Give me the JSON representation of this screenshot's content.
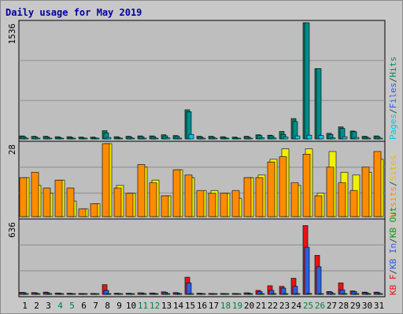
{
  "title": "Daily usage for May 2019",
  "colors": {
    "panel_bg": "#bebebe",
    "grid": "#8c8c8c",
    "pages": "#00c8e8",
    "hits": "#008c5a",
    "sites": "#ff8c00",
    "visits": "#f0f000",
    "kb_in": "#2a60e0",
    "kb_out": "#00a000",
    "kb_f": "#e81414",
    "title": "#0000a0",
    "weekend_label": "#008040"
  },
  "chart_data": [
    {
      "type": "bar",
      "title": "Daily usage for May 2019",
      "categories": [
        "1",
        "2",
        "3",
        "4",
        "5",
        "6",
        "7",
        "8",
        "9",
        "10",
        "11",
        "12",
        "13",
        "14",
        "15",
        "16",
        "17",
        "18",
        "19",
        "20",
        "21",
        "22",
        "23",
        "24",
        "25",
        "26",
        "27",
        "28",
        "29",
        "30",
        "31"
      ],
      "weekend_days": [
        "4",
        "5",
        "11",
        "12",
        "18",
        "19",
        "25",
        "26"
      ],
      "ymax_label": "1536",
      "ylim": [
        0,
        1536
      ],
      "axis_legend": [
        "Pages",
        "/",
        "Files",
        "/",
        "Hits"
      ],
      "series": [
        {
          "name": "Hits",
          "values": [
            40,
            35,
            35,
            30,
            30,
            25,
            25,
            110,
            30,
            35,
            40,
            40,
            55,
            45,
            385,
            35,
            35,
            30,
            25,
            35,
            55,
            50,
            100,
            270,
            1536,
            930,
            75,
            160,
            105,
            35,
            40
          ]
        },
        {
          "name": "Files",
          "values": [
            30,
            25,
            25,
            20,
            20,
            15,
            15,
            80,
            20,
            25,
            30,
            30,
            40,
            35,
            360,
            25,
            25,
            20,
            15,
            25,
            45,
            40,
            60,
            230,
            1536,
            930,
            60,
            140,
            95,
            25,
            30
          ]
        },
        {
          "name": "Pages",
          "values": [
            10,
            8,
            8,
            5,
            5,
            5,
            5,
            20,
            5,
            8,
            10,
            10,
            15,
            10,
            60,
            8,
            8,
            5,
            5,
            10,
            15,
            12,
            25,
            40,
            50,
            45,
            15,
            30,
            20,
            8,
            10
          ]
        }
      ]
    },
    {
      "type": "bar",
      "categories": [
        "1",
        "2",
        "3",
        "4",
        "5",
        "6",
        "7",
        "8",
        "9",
        "10",
        "11",
        "12",
        "13",
        "14",
        "15",
        "16",
        "17",
        "18",
        "19",
        "20",
        "21",
        "22",
        "23",
        "24",
        "25",
        "26",
        "27",
        "28",
        "29",
        "30",
        "31"
      ],
      "ymax_label": "28",
      "ylim": [
        0,
        28
      ],
      "axis_legend": [
        "Visits",
        "/",
        "Sites"
      ],
      "series": [
        {
          "name": "Visits",
          "values": [
            15,
            12,
            9,
            14,
            6,
            3,
            5,
            28,
            12,
            9,
            19,
            14,
            8,
            18,
            15,
            10,
            10,
            9,
            7,
            15,
            16,
            22,
            26,
            12,
            26,
            9,
            25,
            17,
            16,
            17,
            22
          ]
        },
        {
          "name": "Sites",
          "values": [
            15,
            17,
            11,
            14,
            11,
            3,
            5,
            28,
            11,
            9,
            20,
            13,
            8,
            18,
            16,
            10,
            9,
            9,
            10,
            15,
            15,
            21,
            23,
            13,
            24,
            8,
            19,
            13,
            10,
            19,
            25
          ]
        }
      ]
    },
    {
      "type": "bar",
      "categories": [
        "1",
        "2",
        "3",
        "4",
        "5",
        "6",
        "7",
        "8",
        "9",
        "10",
        "11",
        "12",
        "13",
        "14",
        "15",
        "16",
        "17",
        "18",
        "19",
        "20",
        "21",
        "22",
        "23",
        "24",
        "25",
        "26",
        "27",
        "28",
        "29",
        "30",
        "31"
      ],
      "ymax_label": "636",
      "ylim": [
        0,
        636
      ],
      "axis_legend": [
        "KB F",
        "/",
        "KB In",
        "/",
        "KB Out"
      ],
      "series": [
        {
          "name": "KB F",
          "values": [
            18,
            16,
            20,
            12,
            10,
            8,
            8,
            85,
            10,
            10,
            14,
            12,
            22,
            16,
            150,
            10,
            8,
            8,
            8,
            14,
            35,
            75,
            70,
            140,
            600,
            340,
            25,
            100,
            30,
            20,
            20
          ]
        },
        {
          "name": "KB In",
          "values": [
            15,
            13,
            15,
            10,
            8,
            6,
            6,
            35,
            8,
            8,
            12,
            10,
            18,
            12,
            100,
            8,
            6,
            6,
            6,
            12,
            25,
            35,
            55,
            70,
            410,
            240,
            20,
            40,
            25,
            15,
            15
          ]
        },
        {
          "name": "KB Out",
          "values": [
            2,
            2,
            2,
            1,
            1,
            1,
            1,
            3,
            1,
            1,
            2,
            1,
            2,
            2,
            5,
            1,
            1,
            1,
            1,
            2,
            3,
            3,
            4,
            5,
            8,
            6,
            2,
            3,
            2,
            2,
            2
          ]
        }
      ]
    }
  ],
  "x_labels": [
    "1",
    "2",
    "3",
    "4",
    "5",
    "6",
    "7",
    "8",
    "9",
    "10",
    "11",
    "12",
    "13",
    "14",
    "15",
    "16",
    "17",
    "18",
    "19",
    "20",
    "21",
    "22",
    "23",
    "24",
    "25",
    "26",
    "27",
    "28",
    "29",
    "30",
    "31"
  ]
}
